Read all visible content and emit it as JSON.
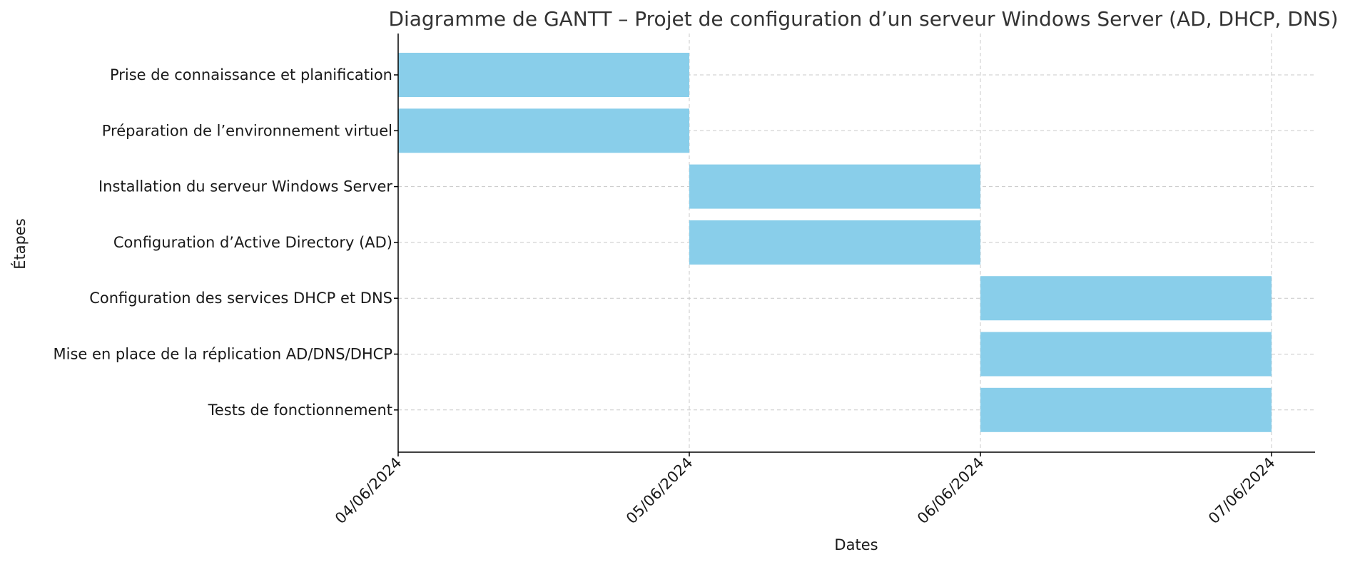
{
  "chart_data": {
    "type": "gantt",
    "title": "Diagramme de GANTT – Projet de configuration d’un serveur Windows Server (AD, DHCP, DNS)",
    "xlabel": "Dates",
    "ylabel": "Étapes",
    "x_ticks": [
      "04/06/2024",
      "05/06/2024",
      "06/06/2024",
      "07/06/2024"
    ],
    "xlim": [
      "04/06/2024",
      "07/06/2024"
    ],
    "grid": true,
    "bar_color": "#89CEEA",
    "tasks": [
      {
        "name": "Prise de connaissance et planification",
        "start": "04/06/2024",
        "end": "05/06/2024"
      },
      {
        "name": "Préparation de l’environnement virtuel",
        "start": "04/06/2024",
        "end": "05/06/2024"
      },
      {
        "name": "Installation du serveur Windows Server",
        "start": "05/06/2024",
        "end": "06/06/2024"
      },
      {
        "name": "Configuration d’Active Directory (AD)",
        "start": "05/06/2024",
        "end": "06/06/2024"
      },
      {
        "name": "Configuration des services DHCP et DNS",
        "start": "06/06/2024",
        "end": "07/06/2024"
      },
      {
        "name": "Mise en place de la réplication AD/DNS/DHCP",
        "start": "06/06/2024",
        "end": "07/06/2024"
      },
      {
        "name": "Tests de fonctionnement",
        "start": "06/06/2024",
        "end": "07/06/2024"
      }
    ]
  }
}
